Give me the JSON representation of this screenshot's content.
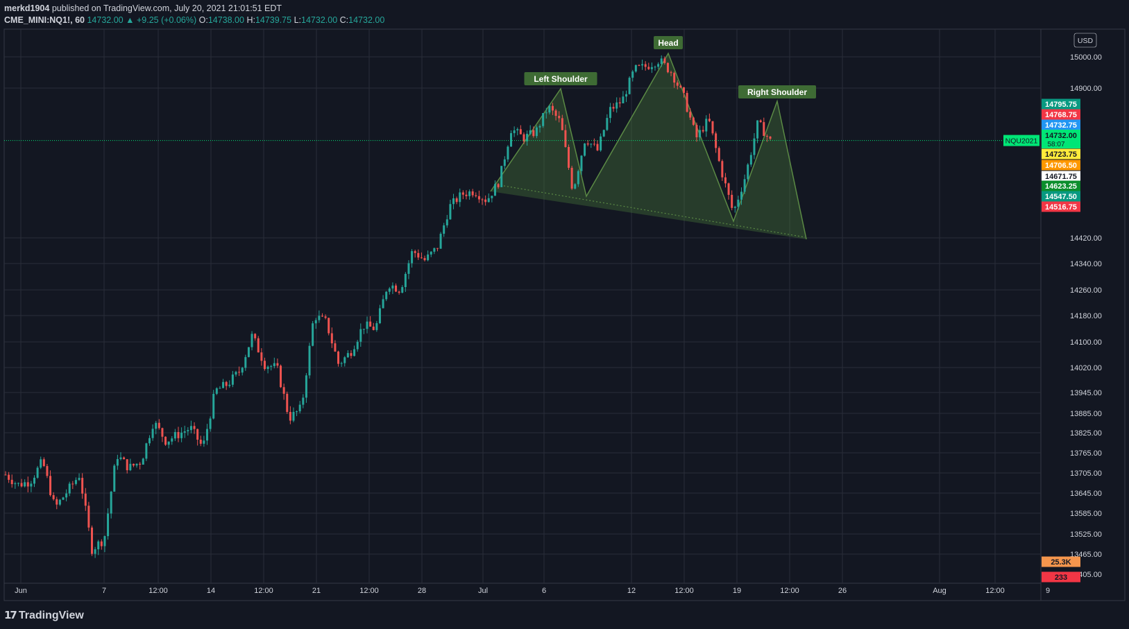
{
  "header": {
    "author": "merkd1904",
    "published_text": "published on TradingView.com, July 20, 2021 21:01:51 EDT",
    "symbol": "CME_MINI:NQ1!, 60",
    "last": "14732.00",
    "change_arrow": "▲",
    "change": "+9.25 (+0.06%)",
    "o_label": "O:",
    "o_value": "14738.00",
    "h_label": "H:",
    "h_value": "14739.75",
    "l_label": "L:",
    "l_value": "14732.00",
    "c_label": "C:",
    "c_value": "14732.00"
  },
  "footer": {
    "logo_text": "TradingView",
    "logo_icon": "tradingview-logo-icon"
  },
  "colors": {
    "background": "#131722",
    "grid": "#2a2e39",
    "up": "#26a69a",
    "down": "#ef5350",
    "pattern_fill": "rgba(76,130,60,0.35)",
    "pattern_line": "#5b8a45",
    "label_bg": "#3e6b34"
  },
  "chart_data": {
    "type": "candlestick",
    "currency": "USD",
    "x_tick_labels": [
      "Jun",
      "7",
      "12:00",
      "14",
      "12:00",
      "21",
      "12:00",
      "28",
      "Jul",
      "6",
      "12",
      "12:00",
      "19",
      "12:00",
      "26",
      "Aug",
      "12:00",
      "9"
    ],
    "y_tick_labels": [
      "15000.00",
      "14900.00",
      "14420.00",
      "14340.00",
      "14260.00",
      "14180.00",
      "14100.00",
      "14020.00",
      "13945.00",
      "13885.00",
      "13825.00",
      "13765.00",
      "13705.00",
      "13645.00",
      "13585.00",
      "13525.00",
      "13465.00",
      "13405.00"
    ],
    "ylim": [
      13385,
      15065
    ],
    "price_line": {
      "symbol": "NQU2021",
      "value": 14732.0,
      "label": "14732.00",
      "countdown": "58:07",
      "color": "#00e676"
    },
    "price_markers": [
      {
        "label": "14795.75",
        "value": 14795.75,
        "color": "#089981"
      },
      {
        "label": "14768.75",
        "value": 14768.75,
        "color": "#f23645"
      },
      {
        "label": "14732.75",
        "value": 14732.75,
        "color": "#2196f3"
      },
      {
        "label": "14723.75",
        "value": 14723.75,
        "color": "#ffeb3b",
        "text_color": "#131722"
      },
      {
        "label": "14706.50",
        "value": 14706.5,
        "color": "#ff9800"
      },
      {
        "label": "14671.75",
        "value": 14671.75,
        "color": "#ffffff",
        "text_color": "#131722"
      },
      {
        "label": "14623.25",
        "value": 14623.25,
        "color": "#0b8e2c"
      },
      {
        "label": "14547.50",
        "value": 14547.5,
        "color": "#089981"
      },
      {
        "label": "14516.75",
        "value": 14516.75,
        "color": "#f23645"
      }
    ],
    "volume_markers": [
      {
        "label": "25.3K",
        "color": "#f5964d"
      },
      {
        "label": "233",
        "color": "#f23645"
      }
    ],
    "pattern": {
      "name": "Head and Shoulders",
      "labels": [
        "Left Shoulder",
        "Head",
        "Right Shoulder"
      ]
    },
    "series": [
      {
        "approx_close_path": [
          13700,
          13670,
          13680,
          13740,
          13600,
          13650,
          13700,
          13480,
          13510,
          13760,
          13720,
          13740,
          13860,
          13800,
          13820,
          13840,
          13780,
          13950,
          13970,
          14010,
          14120,
          14030,
          14020,
          13870,
          13900,
          14180,
          14160,
          14030,
          14070,
          14150,
          14140,
          14280,
          14260,
          14380,
          14350,
          14390,
          14520,
          14560,
          14570,
          14540,
          14600,
          14770,
          14740,
          14760,
          14840,
          14790,
          14570,
          14740,
          14700,
          14830,
          14860,
          14960,
          14970,
          14990,
          14950,
          14870,
          14740,
          14800,
          14640,
          14500,
          14620,
          14790,
          14730
        ]
      }
    ]
  }
}
